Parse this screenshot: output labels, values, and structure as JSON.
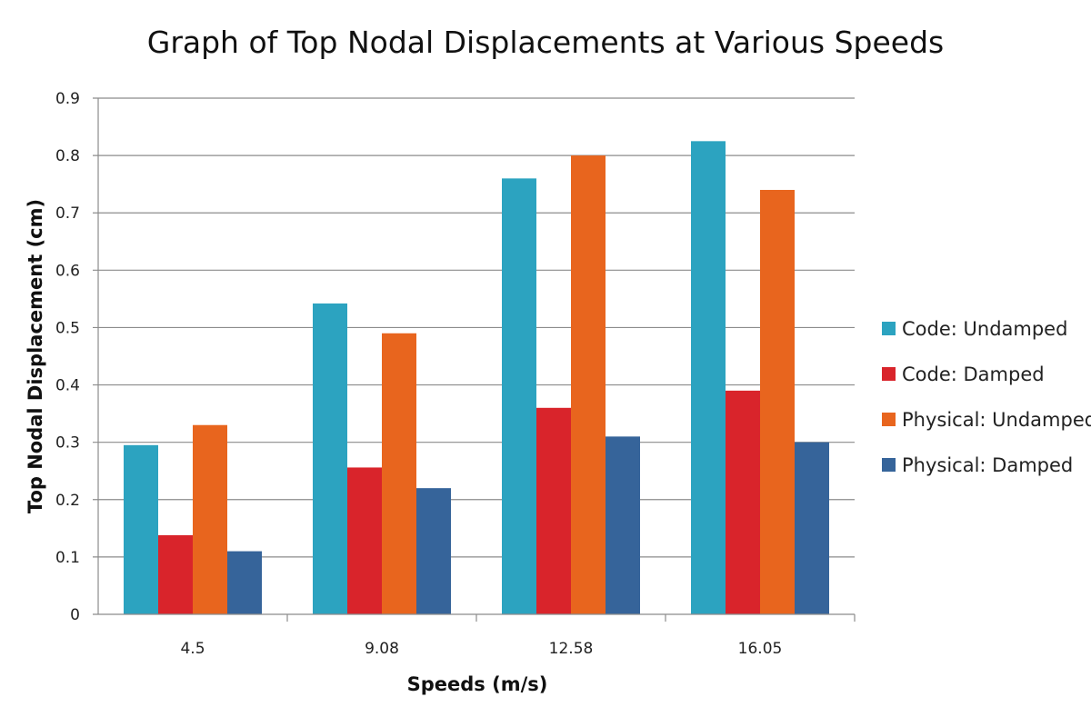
{
  "chart_data": {
    "type": "bar",
    "title": "Graph of Top Nodal Displacements at Various Speeds",
    "xlabel": "Speeds (m/s)",
    "ylabel": "Top Nodal Displacement (cm)",
    "categories": [
      "4.5",
      "9.08",
      "12.58",
      "16.05"
    ],
    "ylim": [
      0,
      0.9
    ],
    "yticks": [
      "0",
      "0.1",
      "0.2",
      "0.3",
      "0.4",
      "0.5",
      "0.6",
      "0.7",
      "0.8",
      "0.9"
    ],
    "grid": true,
    "legend_position": "right",
    "series": [
      {
        "name": "Code: Undamped",
        "color": "#2CA3C0",
        "values": [
          0.295,
          0.542,
          0.76,
          0.825
        ]
      },
      {
        "name": "Code: Damped",
        "color": "#D9242B",
        "values": [
          0.138,
          0.256,
          0.36,
          0.39
        ]
      },
      {
        "name": "Physical: Undamped",
        "color": "#E8651E",
        "values": [
          0.33,
          0.49,
          0.8,
          0.74
        ]
      },
      {
        "name": "Physical: Damped",
        "color": "#36649A",
        "values": [
          0.11,
          0.22,
          0.31,
          0.3
        ]
      }
    ]
  }
}
